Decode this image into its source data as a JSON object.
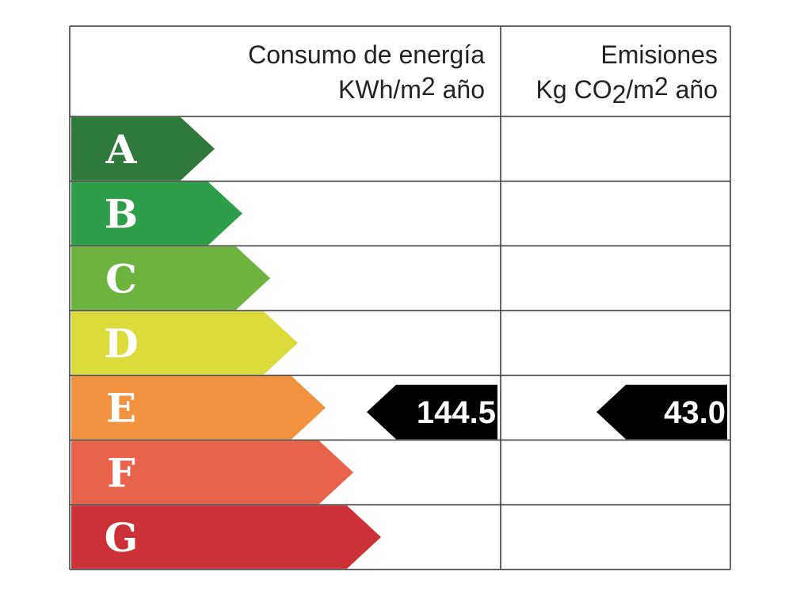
{
  "headers": [
    {
      "line1": "Consumo de energía",
      "line2": [
        {
          "text": "KWh/m"
        },
        {
          "text": "2",
          "script": "sup"
        },
        {
          "text": " año"
        }
      ]
    },
    {
      "line1": "Emisiones",
      "line2": [
        {
          "text": "Kg CO"
        },
        {
          "text": "2",
          "script": "sub"
        },
        {
          "text": "/m"
        },
        {
          "text": "2",
          "script": "sup"
        },
        {
          "text": " año"
        }
      ]
    }
  ],
  "ratings": [
    {
      "letter": "A",
      "color": "#2e7a3c"
    },
    {
      "letter": "B",
      "color": "#2f9e48"
    },
    {
      "letter": "C",
      "color": "#6cb33f"
    },
    {
      "letter": "D",
      "color": "#d9dc3a"
    },
    {
      "letter": "E",
      "color": "#f0923f"
    },
    {
      "letter": "F",
      "color": "#e8634a"
    },
    {
      "letter": "G",
      "color": "#cc3135"
    }
  ],
  "indicators": [
    {
      "rating": "E",
      "value": "144.5"
    },
    {
      "rating": "E",
      "value": "43.0"
    }
  ]
}
